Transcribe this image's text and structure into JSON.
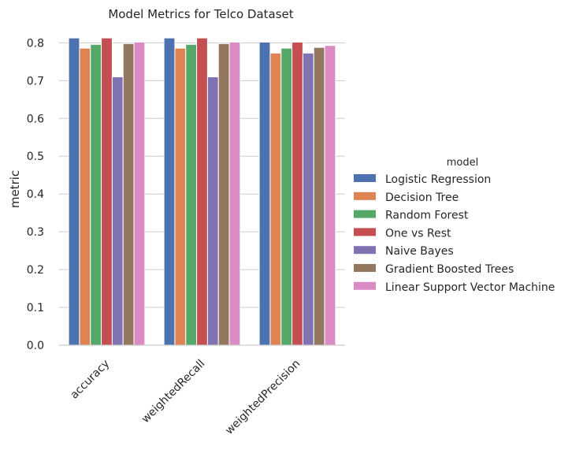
{
  "chart_data": {
    "type": "bar",
    "title": "Model Metrics for Telco Dataset",
    "xlabel": "",
    "ylabel": "metric",
    "ylim": [
      0,
      0.83
    ],
    "yticks": [
      "0.0",
      "0.1",
      "0.2",
      "0.3",
      "0.4",
      "0.5",
      "0.6",
      "0.7",
      "0.8"
    ],
    "grid": "horizontal",
    "categories": [
      "accuracy",
      "weightedRecall",
      "weightedPrecision"
    ],
    "legend": {
      "title": "model",
      "placement": "right"
    },
    "series": [
      {
        "name": "Logistic Regression",
        "color": "#4c72b0",
        "values": [
          0.813,
          0.813,
          0.802
        ]
      },
      {
        "name": "Decision Tree",
        "color": "#dd8452",
        "values": [
          0.786,
          0.786,
          0.773
        ]
      },
      {
        "name": "Random Forest",
        "color": "#55a868",
        "values": [
          0.796,
          0.796,
          0.786
        ]
      },
      {
        "name": "One vs Rest",
        "color": "#c44e52",
        "values": [
          0.813,
          0.813,
          0.802
        ]
      },
      {
        "name": "Naive Bayes",
        "color": "#8172b3",
        "values": [
          0.71,
          0.71,
          0.773
        ]
      },
      {
        "name": "Gradient Boosted Trees",
        "color": "#937860",
        "values": [
          0.798,
          0.798,
          0.788
        ]
      },
      {
        "name": "Linear Support Vector Machine",
        "color": "#da8bc3",
        "values": [
          0.802,
          0.802,
          0.793
        ]
      }
    ]
  }
}
